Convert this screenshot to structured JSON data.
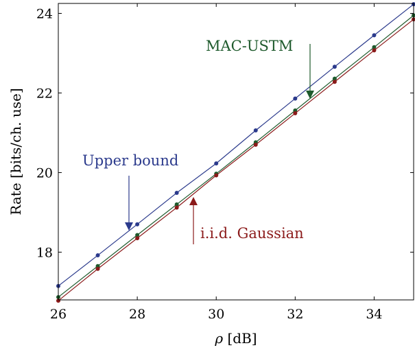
{
  "chart_data": {
    "type": "line",
    "xlabel_symbol": "ρ",
    "xlabel_unit": "[dB]",
    "ylabel": "Rate [bits/ch. use]",
    "xlim": [
      26,
      35
    ],
    "ylim": [
      16.8,
      24.25
    ],
    "x_ticks": [
      26,
      28,
      30,
      32,
      34
    ],
    "y_ticks": [
      18,
      20,
      22,
      24
    ],
    "grid": false,
    "x": [
      26,
      27,
      28,
      29,
      30,
      31,
      32,
      33,
      34,
      35
    ],
    "series": [
      {
        "name": "Upper bound",
        "color": "#2b3a8c",
        "values": [
          17.15,
          17.92,
          18.7,
          19.49,
          20.23,
          21.06,
          21.86,
          22.66,
          23.45,
          24.23
        ]
      },
      {
        "name": "MAC-USTM",
        "color": "#1e5a2c",
        "values": [
          16.87,
          17.65,
          18.43,
          19.2,
          19.97,
          20.76,
          21.56,
          22.36,
          23.15,
          23.95
        ]
      },
      {
        "name": "i.i.d. Gaussian",
        "color": "#8b1a1a",
        "values": [
          16.78,
          17.58,
          18.35,
          19.12,
          19.93,
          20.7,
          21.49,
          22.28,
          23.07,
          23.85
        ]
      }
    ],
    "annotations": [
      {
        "text": "Upper bound",
        "color": "#2b3a8c"
      },
      {
        "text": "MAC-USTM",
        "color": "#1e5a2c"
      },
      {
        "text": "i.i.d. Gaussian",
        "color": "#8b1a1a"
      }
    ]
  }
}
